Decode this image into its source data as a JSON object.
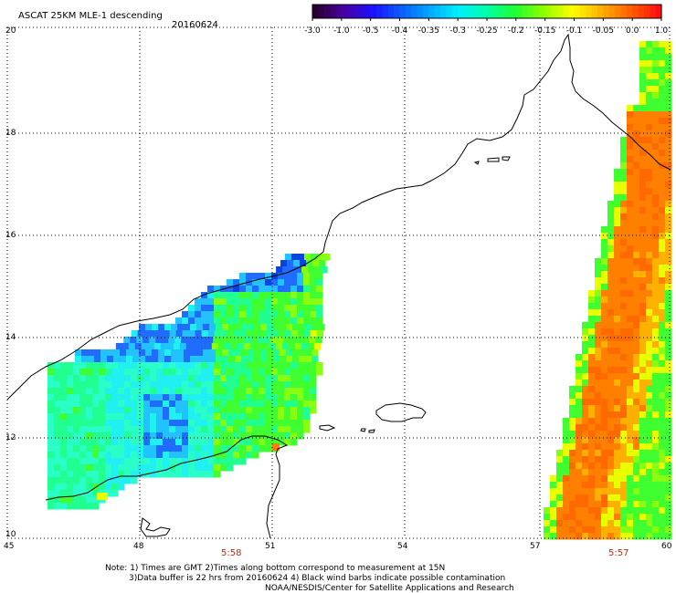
{
  "header": {
    "title": "ASCAT 25KM MLE-1 descending",
    "date": "20160624"
  },
  "colorbar": {
    "tick_labels": [
      "-3.0",
      "-1.0",
      "-0.5",
      "-0.4",
      "-0.35",
      "-0.3",
      "-0.25",
      "-0.2",
      "-0.15",
      "-0.1",
      "-0.05",
      "0.0",
      "1.0"
    ],
    "colors": [
      "#2a0030",
      "#4800a0",
      "#1c10ff",
      "#0a5cff",
      "#00a8ff",
      "#00f0ff",
      "#00ffa8",
      "#20ff30",
      "#90ff00",
      "#ffff00",
      "#ffb000",
      "#ff6000",
      "#ff1010"
    ]
  },
  "map": {
    "lat_labels": [
      "20",
      "18",
      "16",
      "14",
      "12",
      "10"
    ],
    "lon_labels": [
      "45",
      "48",
      "51",
      "54",
      "57",
      "60"
    ],
    "swath_times": [
      "5:58",
      "5:57"
    ]
  },
  "footer": {
    "line1": "Note: 1) Times are GMT 2)Times along bottom correspond to measurement at 15N",
    "line2": "3)Data buffer is 22 hrs from 20160624 4) Black wind barbs indicate possible contamination",
    "line3": "NOAA/NESDIS/Center for Satellite Applications and Research"
  }
}
